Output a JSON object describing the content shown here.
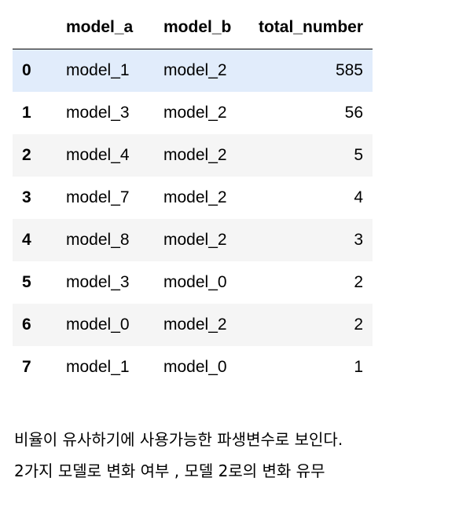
{
  "table": {
    "columns": [
      "model_a",
      "model_b",
      "total_number"
    ],
    "rows": [
      {
        "index": "0",
        "model_a": "model_1",
        "model_b": "model_2",
        "total_number": "585"
      },
      {
        "index": "1",
        "model_a": "model_3",
        "model_b": "model_2",
        "total_number": "56"
      },
      {
        "index": "2",
        "model_a": "model_4",
        "model_b": "model_2",
        "total_number": "5"
      },
      {
        "index": "3",
        "model_a": "model_7",
        "model_b": "model_2",
        "total_number": "4"
      },
      {
        "index": "4",
        "model_a": "model_8",
        "model_b": "model_2",
        "total_number": "3"
      },
      {
        "index": "5",
        "model_a": "model_3",
        "model_b": "model_0",
        "total_number": "2"
      },
      {
        "index": "6",
        "model_a": "model_0",
        "model_b": "model_2",
        "total_number": "2"
      },
      {
        "index": "7",
        "model_a": "model_1",
        "model_b": "model_0",
        "total_number": "1"
      }
    ],
    "highlighted_row": 0
  },
  "note": {
    "line1": "비율이 유사하기에 사용가능한 파생변수로 보인다.",
    "line2": "2가지 모델로 변화 여부 , 모델 2로의 변화 유무"
  },
  "colors": {
    "highlight_row": "#e1ecfb",
    "striped_row": "#f5f5f5",
    "text": "#000000"
  }
}
